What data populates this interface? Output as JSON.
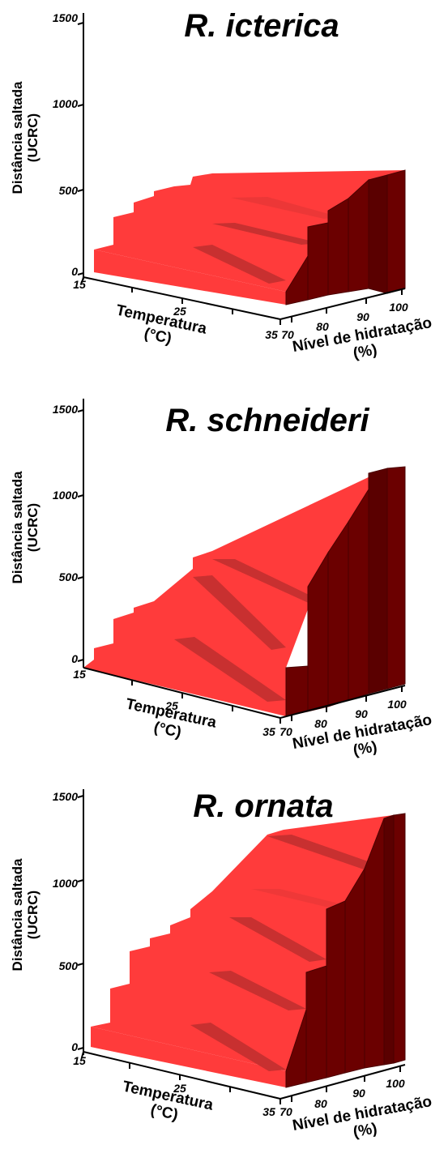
{
  "chart_data": [
    {
      "type": "surface3d",
      "title": "R. icterica",
      "zlabel": [
        "Distância saltada",
        "(UCRC)"
      ],
      "xlabel": [
        "Temperatura",
        "(°C)"
      ],
      "ylabel": [
        "Nível de hidratação",
        "(%)"
      ],
      "z_ticks": [
        "0",
        "500",
        "1000",
        "1500"
      ],
      "x_ticks": [
        "15",
        "25",
        "35"
      ],
      "y_ticks": [
        "70",
        "80",
        "90",
        "100"
      ],
      "zlim": [
        0,
        1500
      ],
      "temperature": [
        15,
        35
      ],
      "hydration": [
        70,
        80,
        90,
        100
      ],
      "z_at_15C": [
        220,
        500,
        520,
        560
      ],
      "z_at_35C": [
        30,
        390,
        800,
        1000
      ],
      "colors": {
        "top": "#ff3b3b",
        "side": "#6b0000",
        "band": "#cc3030"
      }
    },
    {
      "type": "surface3d",
      "title": "R. schneideri",
      "zlabel": [
        "Distância saltada",
        "(UCRC)"
      ],
      "xlabel": [
        "Temperatura",
        "(°C)"
      ],
      "ylabel": [
        "Nível de hidratação",
        "(%)"
      ],
      "z_ticks": [
        "0",
        "500",
        "1000",
        "1500"
      ],
      "x_ticks": [
        "15",
        "25",
        "35"
      ],
      "y_ticks": [
        "70",
        "80",
        "90",
        "100"
      ],
      "zlim": [
        0,
        1500
      ],
      "temperature": [
        15,
        35
      ],
      "hydration": [
        70,
        80,
        90,
        100
      ],
      "z_at_15C": [
        50,
        450,
        700,
        1100
      ],
      "z_at_35C": [
        30,
        380,
        700,
        1400
      ],
      "colors": {
        "top": "#ff3b3b",
        "side": "#6b0000",
        "band": "#cc3030"
      }
    },
    {
      "type": "surface3d",
      "title": "R. ornata",
      "zlabel": [
        "Distância saltada",
        "(UCRC)"
      ],
      "xlabel": [
        "Temperatura",
        "(°C)"
      ],
      "ylabel": [
        "Nível de hidratação",
        "(%)"
      ],
      "z_ticks": [
        "0",
        "500",
        "1000",
        "1500"
      ],
      "x_ticks": [
        "15",
        "25",
        "35"
      ],
      "y_ticks": [
        "70",
        "80",
        "90",
        "100"
      ],
      "zlim": [
        0,
        1500
      ],
      "temperature": [
        15,
        35
      ],
      "hydration": [
        70,
        80,
        90,
        100
      ],
      "z_at_15C": [
        220,
        600,
        900,
        1400
      ],
      "z_at_35C": [
        30,
        400,
        900,
        1500
      ],
      "colors": {
        "top": "#ff3b3b",
        "side": "#6b0000",
        "band": "#cc3030"
      }
    }
  ]
}
